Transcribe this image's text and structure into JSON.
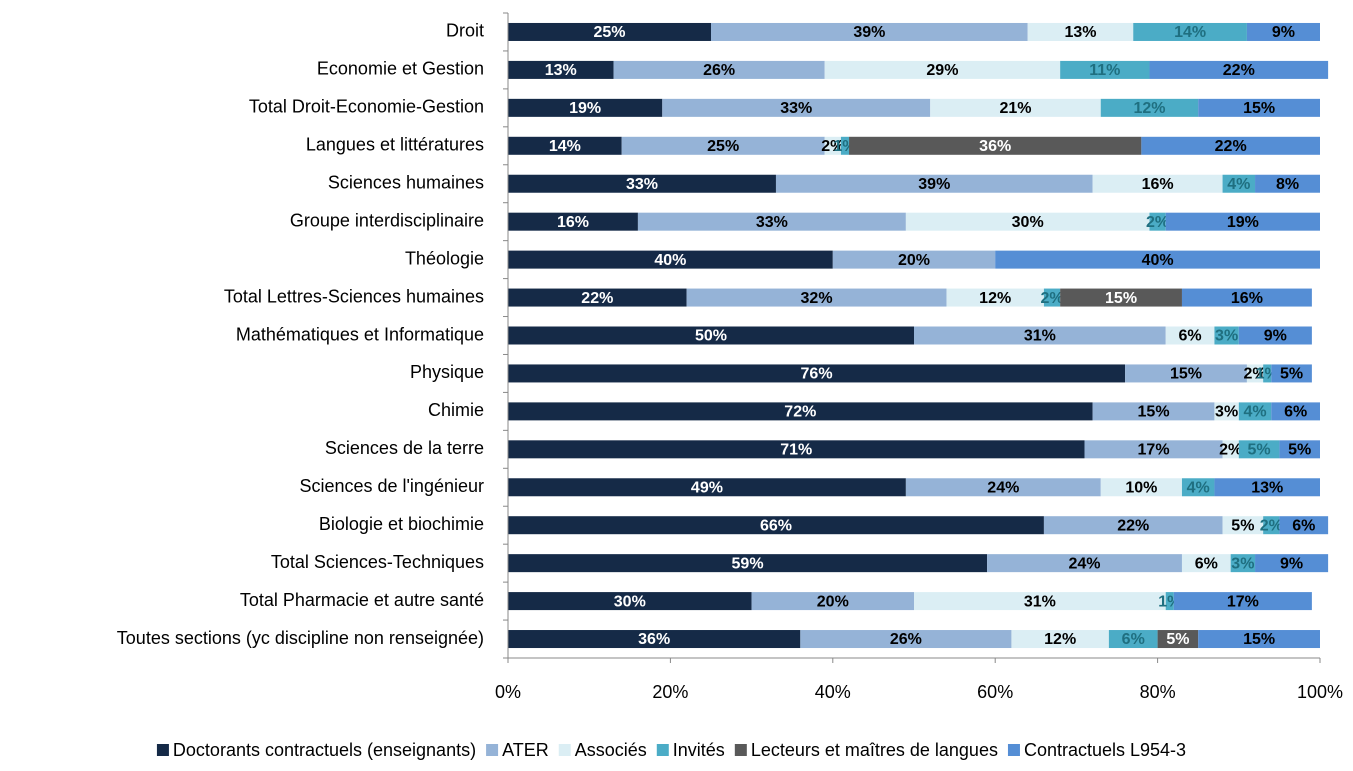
{
  "chart_data": {
    "type": "stacked-bar-horizontal",
    "categories": [
      "Droit",
      "Economie et Gestion",
      "Total Droit-Economie-Gestion",
      "Langues et littératures",
      "Sciences humaines",
      "Groupe interdisciplinaire",
      "Théologie",
      "Total Lettres-Sciences humaines",
      "Mathématiques et Informatique",
      "Physique",
      "Chimie",
      "Sciences de la terre",
      "Sciences de l'ingénieur",
      "Biologie et biochimie",
      "Total Sciences-Techniques",
      "Total Pharmacie et autre santé",
      "Toutes sections (yc discipline non renseignée)"
    ],
    "xlim": [
      0,
      100
    ],
    "xticks": [
      {
        "value": 0,
        "label": "0%"
      },
      {
        "value": 20,
        "label": "20%"
      },
      {
        "value": 40,
        "label": "40%"
      },
      {
        "value": 60,
        "label": "60%"
      },
      {
        "value": 80,
        "label": "80%"
      },
      {
        "value": 100,
        "label": "100%"
      }
    ],
    "legend": "bottom",
    "series": [
      {
        "name": "Doctorants contractuels (enseignants)",
        "color": "#152a47",
        "values": [
          25,
          13,
          19,
          14,
          33,
          16,
          40,
          22,
          50,
          76,
          72,
          71,
          49,
          66,
          59,
          30,
          36
        ],
        "value_labels": [
          "25%",
          "13%",
          "19%",
          "14%",
          "33%",
          "16%",
          "40%",
          "22%",
          "50%",
          "76%",
          "72%",
          "71%",
          "49%",
          "66%",
          "59%",
          "30%",
          "36%"
        ]
      },
      {
        "name": "ATER",
        "color": "#95b3d7",
        "values": [
          39,
          26,
          33,
          25,
          39,
          33,
          20,
          32,
          31,
          15,
          15,
          17,
          24,
          22,
          24,
          20,
          26
        ],
        "value_labels": [
          "39%",
          "26%",
          "33%",
          "25%",
          "39%",
          "33%",
          "20%",
          "32%",
          "31%",
          "15%",
          "15%",
          "17%",
          "24%",
          "22%",
          "24%",
          "20%",
          "26%"
        ]
      },
      {
        "name": "Associés",
        "color": "#dbeef4",
        "values": [
          13,
          29,
          21,
          2,
          16,
          30,
          null,
          12,
          6,
          2,
          3,
          2,
          10,
          5,
          6,
          31,
          12
        ],
        "value_labels": [
          "13%",
          "29%",
          "21%",
          "2%",
          "16%",
          "30%",
          null,
          "12%",
          "6%",
          "2%",
          "3%",
          "2%",
          "10%",
          "5%",
          "6%",
          "31%",
          "12%"
        ]
      },
      {
        "name": "Invités",
        "color": "#4bacc6",
        "values": [
          14,
          11,
          12,
          1,
          4,
          2,
          null,
          2,
          3,
          1,
          4,
          5,
          4,
          2,
          3,
          1,
          6
        ],
        "value_labels": [
          "14%",
          "11%",
          "12%",
          "1%",
          "4%",
          "2%",
          null,
          "2%",
          "3%",
          "1%",
          "4%",
          "5%",
          "4%",
          "2%",
          "3%",
          "1%",
          "6%"
        ]
      },
      {
        "name": "Lecteurs et maîtres de langues",
        "color": "#595959",
        "values": [
          null,
          null,
          null,
          36,
          null,
          null,
          null,
          15,
          null,
          null,
          null,
          null,
          null,
          null,
          null,
          null,
          5
        ],
        "value_labels": [
          null,
          null,
          null,
          "36%",
          null,
          null,
          null,
          "15%",
          null,
          null,
          null,
          null,
          null,
          null,
          null,
          null,
          "5%"
        ]
      },
      {
        "name": "Contractuels L954-3",
        "color": "#558ed5",
        "values": [
          9,
          22,
          15,
          22,
          8,
          19,
          40,
          16,
          9,
          5,
          6,
          5,
          13,
          6,
          9,
          17,
          15
        ],
        "value_labels": [
          "9%",
          "22%",
          "15%",
          "22%",
          "8%",
          "19%",
          "40%",
          "16%",
          "9%",
          "5%",
          "6%",
          "5%",
          "13%",
          "6%",
          "9%",
          "17%",
          "15%"
        ]
      }
    ]
  }
}
